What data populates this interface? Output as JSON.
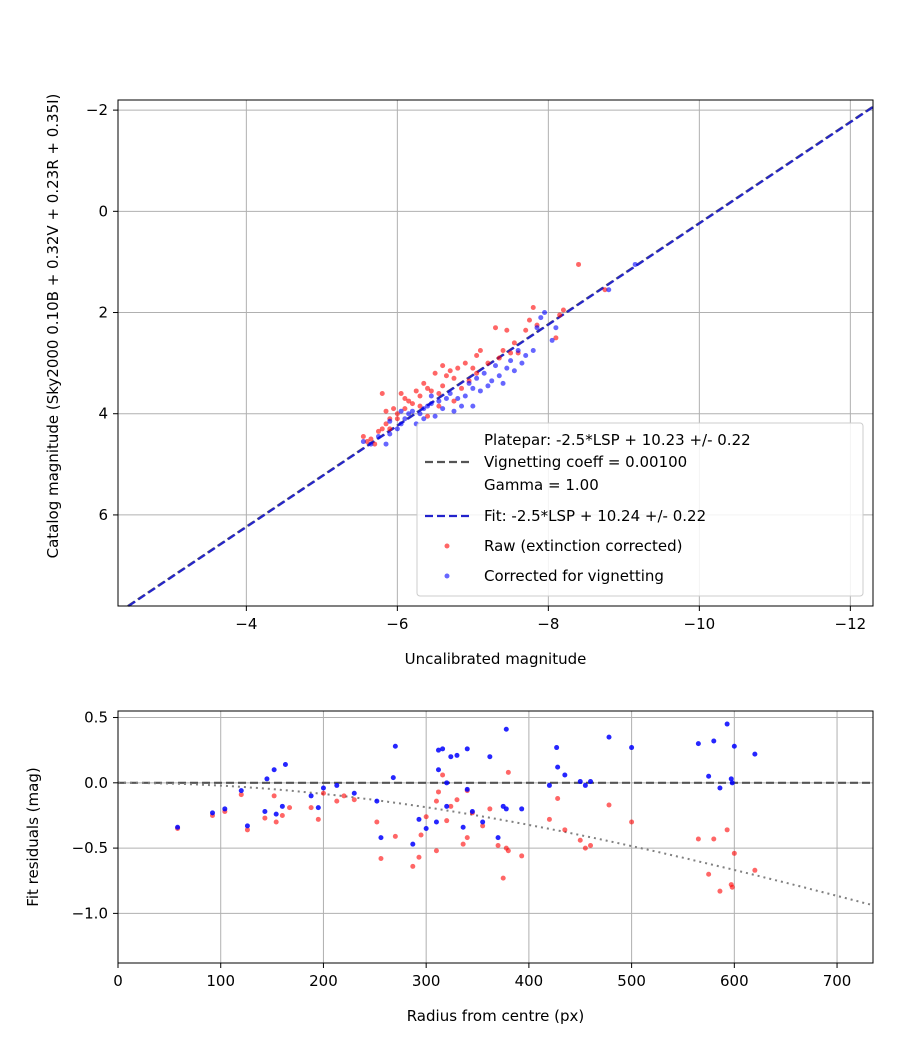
{
  "colors": {
    "raw": "#ff0000",
    "corrected": "#0000ff",
    "platepar": "#555555",
    "fit": "#2222cc",
    "grid": "#b0b0b0",
    "curve": "#808080"
  },
  "chart_data": [
    {
      "type": "scatter",
      "xlabel": "Uncalibrated magnitude",
      "ylabel": "Catalog magnitude (Sky2000 0.10B + 0.32V + 0.23R + 0.35I)",
      "xlim": [
        -2.3,
        -12.3
      ],
      "ylim": [
        7.8,
        -2.2
      ],
      "x_inverted": true,
      "y_inverted": true,
      "xticks": [
        -4,
        -6,
        -8,
        -10,
        -12
      ],
      "xtick_labels": [
        "−4",
        "−6",
        "−8",
        "−10",
        "−12"
      ],
      "yticks": [
        -2,
        0,
        2,
        4,
        6
      ],
      "ytick_labels": [
        "−2",
        "0",
        "2",
        "4",
        "6"
      ],
      "grid": true,
      "legend_position": "lower-right",
      "legend": [
        {
          "label": "Platepar: -2.5*LSP + 10.23 +/- 0.22",
          "style": "none"
        },
        {
          "label": "Vignetting coeff = 0.00100",
          "style": "dashed-gray"
        },
        {
          "label": "Gamma = 1.00",
          "style": "none"
        },
        {
          "label": "Fit: -2.5*LSP + 10.24 +/- 0.22",
          "style": "dashed-blue"
        },
        {
          "label": "Raw (extinction corrected)",
          "style": "red-dot"
        },
        {
          "label": "Corrected for vignetting",
          "style": "blue-dot"
        }
      ],
      "lines": [
        {
          "name": "Platepar",
          "slope": 1.0,
          "intercept": 10.23,
          "style": "dashed-gray"
        },
        {
          "name": "Fit",
          "slope": 1.0,
          "intercept": 10.24,
          "style": "dashed-blue"
        }
      ],
      "series": [
        {
          "name": "Raw (extinction corrected)",
          "color": "red",
          "points": [
            [
              -5.55,
              4.45
            ],
            [
              -5.6,
              4.55
            ],
            [
              -5.65,
              4.5
            ],
            [
              -5.7,
              4.6
            ],
            [
              -5.75,
              4.35
            ],
            [
              -5.8,
              4.3
            ],
            [
              -5.85,
              3.95
            ],
            [
              -5.8,
              3.6
            ],
            [
              -5.85,
              4.2
            ],
            [
              -5.9,
              4.1
            ],
            [
              -5.95,
              3.9
            ],
            [
              -6.0,
              4.0
            ],
            [
              -6.05,
              3.6
            ],
            [
              -6.1,
              3.7
            ],
            [
              -6.15,
              3.75
            ],
            [
              -6.2,
              3.8
            ],
            [
              -6.25,
              3.55
            ],
            [
              -6.3,
              3.65
            ],
            [
              -6.35,
              3.4
            ],
            [
              -6.4,
              3.5
            ],
            [
              -6.45,
              3.55
            ],
            [
              -6.5,
              3.2
            ],
            [
              -6.55,
              3.6
            ],
            [
              -6.6,
              3.45
            ],
            [
              -6.6,
              3.05
            ],
            [
              -6.65,
              3.25
            ],
            [
              -6.7,
              3.15
            ],
            [
              -6.75,
              3.3
            ],
            [
              -6.8,
              3.1
            ],
            [
              -6.85,
              3.5
            ],
            [
              -6.9,
              3.0
            ],
            [
              -6.95,
              3.35
            ],
            [
              -7.0,
              3.1
            ],
            [
              -7.05,
              3.2
            ],
            [
              -7.1,
              2.75
            ],
            [
              -7.2,
              3.0
            ],
            [
              -7.3,
              2.3
            ],
            [
              -7.35,
              2.9
            ],
            [
              -7.4,
              2.75
            ],
            [
              -7.45,
              2.35
            ],
            [
              -7.55,
              2.6
            ],
            [
              -7.6,
              2.8
            ],
            [
              -7.7,
              2.35
            ],
            [
              -7.75,
              2.15
            ],
            [
              -7.8,
              1.9
            ],
            [
              -7.85,
              2.25
            ],
            [
              -8.1,
              2.5
            ],
            [
              -8.2,
              1.95
            ],
            [
              -8.4,
              1.05
            ],
            [
              -8.75,
              1.55
            ],
            [
              -8.15,
              2.05
            ],
            [
              -6.1,
              3.9
            ],
            [
              -6.3,
              3.85
            ],
            [
              -6.0,
              4.1
            ],
            [
              -6.4,
              4.05
            ],
            [
              -5.9,
              4.3
            ],
            [
              -6.55,
              3.85
            ],
            [
              -6.75,
              3.75
            ],
            [
              -7.05,
              2.85
            ],
            [
              -7.5,
              2.8
            ]
          ]
        },
        {
          "name": "Corrected for vignetting",
          "color": "blue",
          "points": [
            [
              -5.55,
              4.55
            ],
            [
              -5.65,
              4.6
            ],
            [
              -5.75,
              4.45
            ],
            [
              -5.85,
              4.6
            ],
            [
              -5.9,
              4.4
            ],
            [
              -6.0,
              4.3
            ],
            [
              -6.05,
              4.2
            ],
            [
              -6.1,
              4.1
            ],
            [
              -6.15,
              4.0
            ],
            [
              -6.2,
              3.95
            ],
            [
              -6.25,
              4.2
            ],
            [
              -6.3,
              4.0
            ],
            [
              -6.35,
              3.9
            ],
            [
              -6.4,
              3.85
            ],
            [
              -6.45,
              3.8
            ],
            [
              -6.5,
              4.05
            ],
            [
              -6.55,
              3.75
            ],
            [
              -6.6,
              3.9
            ],
            [
              -6.7,
              3.6
            ],
            [
              -6.75,
              3.95
            ],
            [
              -6.8,
              3.7
            ],
            [
              -6.85,
              3.85
            ],
            [
              -6.9,
              3.65
            ],
            [
              -6.95,
              3.4
            ],
            [
              -7.0,
              3.85
            ],
            [
              -7.05,
              3.3
            ],
            [
              -7.1,
              3.55
            ],
            [
              -7.15,
              3.2
            ],
            [
              -7.2,
              3.45
            ],
            [
              -7.25,
              3.35
            ],
            [
              -7.3,
              3.05
            ],
            [
              -7.35,
              3.25
            ],
            [
              -7.4,
              3.4
            ],
            [
              -7.5,
              2.95
            ],
            [
              -7.55,
              3.15
            ],
            [
              -7.6,
              2.75
            ],
            [
              -7.7,
              2.85
            ],
            [
              -7.8,
              2.75
            ],
            [
              -7.85,
              2.3
            ],
            [
              -7.9,
              2.1
            ],
            [
              -7.95,
              2.0
            ],
            [
              -8.05,
              2.55
            ],
            [
              -8.1,
              2.3
            ],
            [
              -8.8,
              1.55
            ],
            [
              -9.15,
              1.05
            ],
            [
              -6.35,
              4.1
            ],
            [
              -6.05,
              3.95
            ],
            [
              -5.9,
              4.15
            ],
            [
              -6.45,
              3.65
            ],
            [
              -6.65,
              3.7
            ],
            [
              -7.0,
              3.5
            ],
            [
              -7.45,
              3.1
            ],
            [
              -7.65,
              3.0
            ]
          ]
        }
      ]
    },
    {
      "type": "scatter",
      "xlabel": "Radius from centre (px)",
      "ylabel": "Fit residuals (mag)",
      "xlim": [
        0,
        735
      ],
      "ylim": [
        -1.38,
        0.55
      ],
      "xticks": [
        0,
        100,
        200,
        300,
        400,
        500,
        600,
        700
      ],
      "xtick_labels": [
        "0",
        "100",
        "200",
        "300",
        "400",
        "500",
        "600",
        "700"
      ],
      "yticks": [
        0.5,
        0.0,
        -0.5,
        -1.0
      ],
      "ytick_labels": [
        "0.5",
        "0.0",
        "−0.5",
        "−1.0"
      ],
      "grid": true,
      "zero_line": 0.0,
      "vignetting_curve_coeff": 0.001,
      "series": [
        {
          "name": "Raw (extinction corrected)",
          "color": "red",
          "points": [
            [
              58,
              -0.35
            ],
            [
              92,
              -0.25
            ],
            [
              104,
              -0.22
            ],
            [
              120,
              -0.09
            ],
            [
              126,
              -0.36
            ],
            [
              143,
              -0.27
            ],
            [
              152,
              -0.1
            ],
            [
              154,
              -0.3
            ],
            [
              160,
              -0.25
            ],
            [
              167,
              -0.19
            ],
            [
              188,
              -0.19
            ],
            [
              195,
              -0.28
            ],
            [
              200,
              -0.08
            ],
            [
              213,
              -0.14
            ],
            [
              220,
              -0.1
            ],
            [
              230,
              -0.13
            ],
            [
              252,
              -0.3
            ],
            [
              256,
              -0.58
            ],
            [
              270,
              -0.41
            ],
            [
              287,
              -0.64
            ],
            [
              293,
              -0.57
            ],
            [
              295,
              -0.4
            ],
            [
              300,
              -0.26
            ],
            [
              310,
              -0.52
            ],
            [
              312,
              -0.07
            ],
            [
              316,
              0.06
            ],
            [
              320,
              -0.29
            ],
            [
              324,
              -0.18
            ],
            [
              330,
              -0.13
            ],
            [
              336,
              -0.47
            ],
            [
              340,
              -0.42
            ],
            [
              345,
              -0.23
            ],
            [
              355,
              -0.33
            ],
            [
              362,
              -0.2
            ],
            [
              370,
              -0.48
            ],
            [
              375,
              -0.73
            ],
            [
              378,
              -0.5
            ],
            [
              380,
              0.08
            ],
            [
              393,
              -0.56
            ],
            [
              420,
              -0.28
            ],
            [
              428,
              -0.12
            ],
            [
              435,
              -0.36
            ],
            [
              450,
              -0.44
            ],
            [
              455,
              -0.5
            ],
            [
              460,
              -0.48
            ],
            [
              478,
              -0.17
            ],
            [
              500,
              -0.3
            ],
            [
              565,
              -0.43
            ],
            [
              575,
              -0.7
            ],
            [
              580,
              -0.43
            ],
            [
              586,
              -0.83
            ],
            [
              593,
              -0.36
            ],
            [
              597,
              -0.78
            ],
            [
              598,
              -0.8
            ],
            [
              600,
              -0.54
            ],
            [
              620,
              -0.67
            ],
            [
              380,
              -0.52
            ],
            [
              340,
              -0.06
            ],
            [
              310,
              -0.14
            ]
          ]
        },
        {
          "name": "Corrected for vignetting",
          "color": "blue",
          "points": [
            [
              58,
              -0.34
            ],
            [
              92,
              -0.23
            ],
            [
              104,
              -0.2
            ],
            [
              120,
              -0.06
            ],
            [
              126,
              -0.33
            ],
            [
              143,
              -0.22
            ],
            [
              145,
              0.03
            ],
            [
              152,
              0.1
            ],
            [
              154,
              -0.24
            ],
            [
              160,
              -0.18
            ],
            [
              163,
              0.14
            ],
            [
              188,
              -0.1
            ],
            [
              195,
              -0.19
            ],
            [
              200,
              -0.04
            ],
            [
              213,
              -0.02
            ],
            [
              230,
              -0.08
            ],
            [
              252,
              -0.14
            ],
            [
              256,
              -0.42
            ],
            [
              268,
              0.04
            ],
            [
              270,
              0.28
            ],
            [
              287,
              -0.47
            ],
            [
              293,
              -0.28
            ],
            [
              300,
              -0.35
            ],
            [
              310,
              -0.3
            ],
            [
              312,
              0.25
            ],
            [
              316,
              0.26
            ],
            [
              320,
              -0.18
            ],
            [
              324,
              0.2
            ],
            [
              330,
              0.21
            ],
            [
              336,
              -0.34
            ],
            [
              340,
              0.26
            ],
            [
              345,
              -0.22
            ],
            [
              355,
              -0.3
            ],
            [
              362,
              0.2
            ],
            [
              370,
              -0.42
            ],
            [
              375,
              -0.18
            ],
            [
              378,
              0.41
            ],
            [
              393,
              -0.2
            ],
            [
              420,
              -0.02
            ],
            [
              428,
              0.12
            ],
            [
              435,
              0.06
            ],
            [
              450,
              0.01
            ],
            [
              455,
              -0.02
            ],
            [
              460,
              0.01
            ],
            [
              478,
              0.35
            ],
            [
              500,
              0.27
            ],
            [
              565,
              0.3
            ],
            [
              575,
              0.05
            ],
            [
              580,
              0.32
            ],
            [
              586,
              -0.04
            ],
            [
              593,
              0.45
            ],
            [
              597,
              0.03
            ],
            [
              598,
              0.0
            ],
            [
              600,
              0.28
            ],
            [
              620,
              0.22
            ],
            [
              312,
              0.1
            ],
            [
              320,
              0.0
            ],
            [
              340,
              -0.05
            ],
            [
              378,
              -0.2
            ],
            [
              427,
              0.27
            ]
          ]
        }
      ]
    }
  ]
}
